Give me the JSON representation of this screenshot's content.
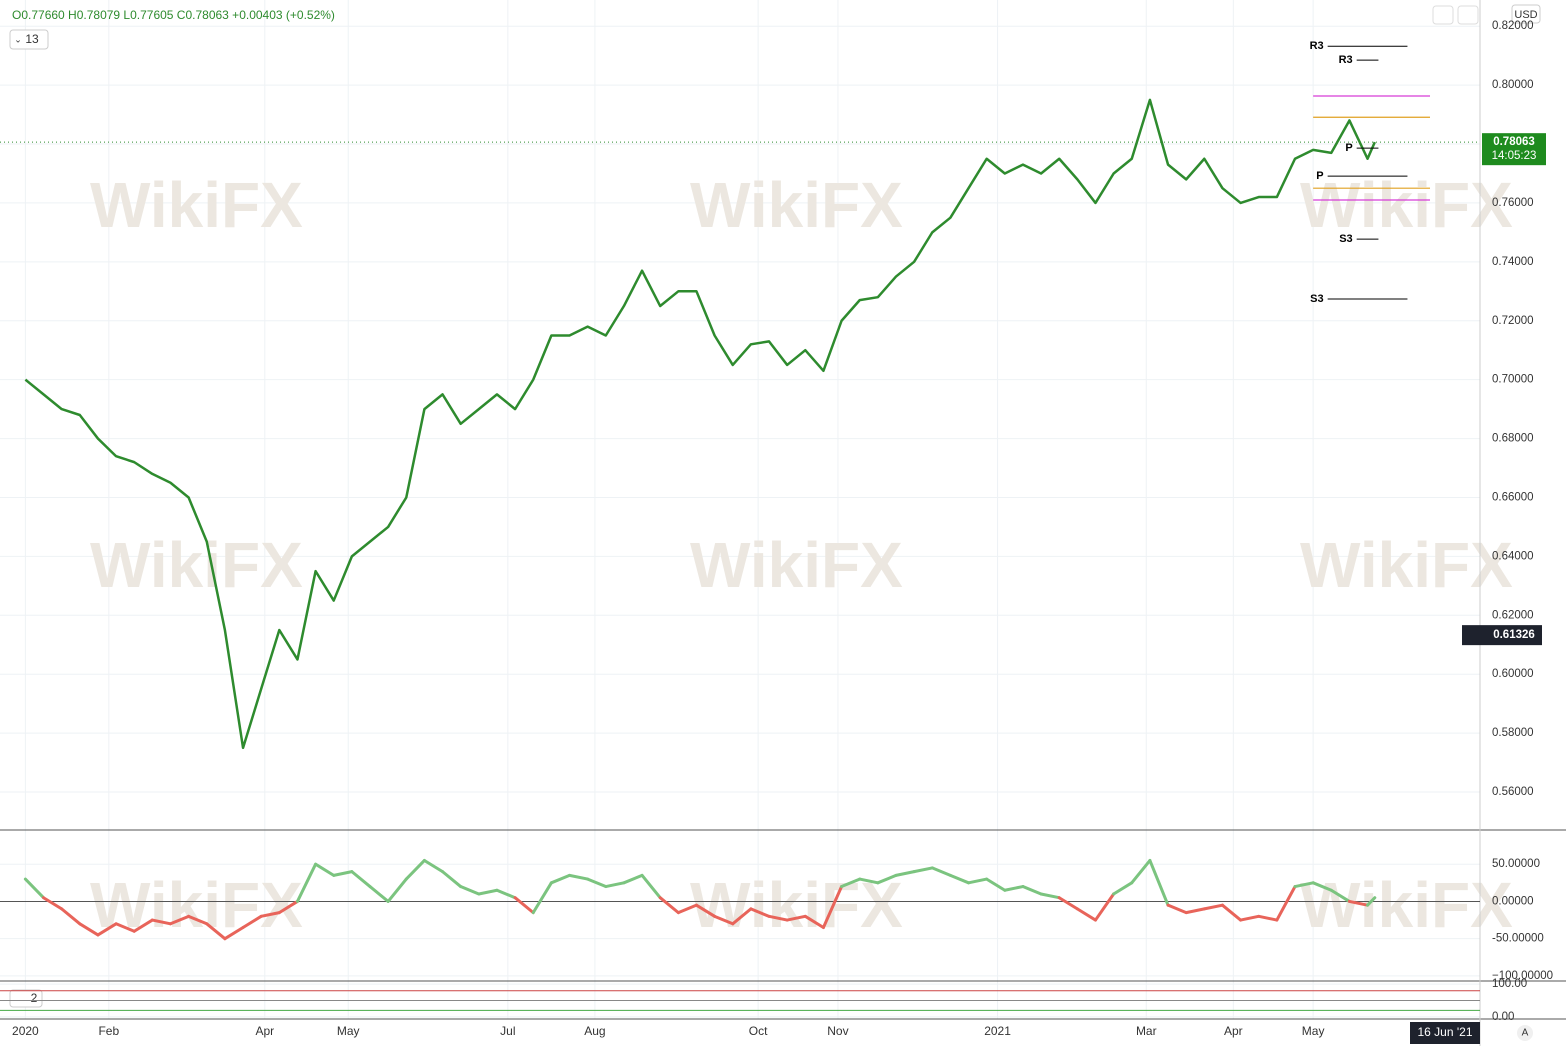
{
  "header": {
    "ohlc": "O0.77660 H0.78079 L0.77605 C0.78063 +0.00403 (+0.52%)",
    "interval": "13",
    "currency": "USD",
    "last_price": "0.78063",
    "countdown": "14:05:23",
    "cursor_price": "0.61326",
    "pane3_label": "2",
    "date_label": "16 Jun '21",
    "auto": "A",
    "watermark": "WikiFX"
  },
  "chart_data": [
    {
      "type": "line",
      "name": "price",
      "color": "#2e8b2e",
      "x": [
        0,
        5,
        10,
        15,
        20,
        25,
        30,
        35,
        40,
        45,
        50,
        55,
        60,
        65,
        70,
        75,
        80,
        85,
        90,
        95,
        100,
        105,
        110,
        115,
        120,
        125,
        130,
        135,
        140,
        145,
        150,
        155,
        160,
        165,
        170,
        175,
        180,
        185,
        190,
        195,
        200,
        205,
        210,
        215,
        220,
        225,
        230,
        235,
        240,
        245,
        250,
        255,
        260,
        265,
        270,
        275,
        280,
        285,
        290,
        295,
        300,
        305,
        310,
        315,
        320,
        325,
        330,
        335,
        340,
        345,
        350,
        355,
        360,
        365,
        370,
        372
      ],
      "values": [
        0.7,
        0.695,
        0.69,
        0.688,
        0.68,
        0.674,
        0.672,
        0.668,
        0.665,
        0.66,
        0.645,
        0.615,
        0.575,
        0.595,
        0.615,
        0.605,
        0.635,
        0.625,
        0.64,
        0.645,
        0.65,
        0.66,
        0.69,
        0.695,
        0.685,
        0.69,
        0.695,
        0.69,
        0.7,
        0.715,
        0.715,
        0.718,
        0.715,
        0.725,
        0.737,
        0.725,
        0.73,
        0.73,
        0.715,
        0.705,
        0.712,
        0.713,
        0.705,
        0.71,
        0.703,
        0.72,
        0.727,
        0.728,
        0.735,
        0.74,
        0.75,
        0.755,
        0.765,
        0.775,
        0.77,
        0.773,
        0.77,
        0.775,
        0.768,
        0.76,
        0.77,
        0.775,
        0.795,
        0.773,
        0.768,
        0.775,
        0.765,
        0.76,
        0.762,
        0.762,
        0.775,
        0.778,
        0.777,
        0.788,
        0.775,
        0.78063
      ],
      "xlim": [
        -7,
        401
      ],
      "ylim": [
        0.5471,
        0.8289
      ],
      "xticks": [
        {
          "value": 0,
          "label": "2020"
        },
        {
          "value": 23,
          "label": "Feb"
        },
        {
          "value": 66,
          "label": "Apr"
        },
        {
          "value": 89,
          "label": "May"
        },
        {
          "value": 133,
          "label": "Jul"
        },
        {
          "value": 157,
          "label": "Aug"
        },
        {
          "value": 202,
          "label": "Oct"
        },
        {
          "value": 224,
          "label": "Nov"
        },
        {
          "value": 268,
          "label": "2021"
        },
        {
          "value": 309,
          "label": "Mar"
        },
        {
          "value": 333,
          "label": "Apr"
        },
        {
          "value": 355,
          "label": "May"
        }
      ],
      "yticks": [
        {
          "value": 0.82,
          "label": "0.82000"
        },
        {
          "value": 0.8,
          "label": "0.80000"
        },
        {
          "value": 0.78,
          "label": "0.78000"
        },
        {
          "value": 0.76,
          "label": "0.76000"
        },
        {
          "value": 0.74,
          "label": "0.74000"
        },
        {
          "value": 0.72,
          "label": "0.72000"
        },
        {
          "value": 0.7,
          "label": "0.70000"
        },
        {
          "value": 0.68,
          "label": "0.68000"
        },
        {
          "value": 0.66,
          "label": "0.66000"
        },
        {
          "value": 0.64,
          "label": "0.64000"
        },
        {
          "value": 0.62,
          "label": "0.62000"
        },
        {
          "value": 0.6,
          "label": "0.60000"
        },
        {
          "value": 0.58,
          "label": "0.58000"
        },
        {
          "value": 0.56,
          "label": "0.56000"
        }
      ],
      "levels": [
        {
          "label": "R3",
          "value": 0.8132,
          "start": 359,
          "end": 381,
          "color": "#000"
        },
        {
          "label": "R3",
          "value": 0.8085,
          "start": 367,
          "end": 373,
          "color": "#000"
        },
        {
          "label": "P",
          "value": 0.7691,
          "start": 359,
          "end": 381,
          "color": "#000"
        },
        {
          "label": "P",
          "value": 0.7786,
          "start": 367,
          "end": 373,
          "color": "#000"
        },
        {
          "label": "S3",
          "value": 0.7477,
          "start": 367,
          "end": 373,
          "color": "#000"
        },
        {
          "label": "S3",
          "value": 0.7274,
          "start": 359,
          "end": 381,
          "color": "#000"
        }
      ],
      "bands": [
        {
          "value": 0.7963,
          "color": "#d63cd6"
        },
        {
          "value": 0.761,
          "color": "#d63cd6"
        },
        {
          "value": 0.7891,
          "color": "#e0a020"
        },
        {
          "value": 0.765,
          "color": "#e0a020"
        }
      ],
      "last": 0.78063,
      "cursor": 0.61326
    },
    {
      "type": "oscillator",
      "name": "momentum",
      "color_up": "#7bc47f",
      "color_down": "#e8645a",
      "x": [
        0,
        5,
        10,
        15,
        20,
        25,
        30,
        35,
        40,
        45,
        50,
        55,
        60,
        65,
        70,
        75,
        80,
        85,
        90,
        95,
        100,
        105,
        110,
        115,
        120,
        125,
        130,
        135,
        140,
        145,
        150,
        155,
        160,
        165,
        170,
        175,
        180,
        185,
        190,
        195,
        200,
        205,
        210,
        215,
        220,
        225,
        230,
        235,
        240,
        245,
        250,
        255,
        260,
        265,
        270,
        275,
        280,
        285,
        290,
        295,
        300,
        305,
        310,
        315,
        320,
        325,
        330,
        335,
        340,
        345,
        350,
        355,
        360,
        365,
        370,
        372
      ],
      "values": [
        30,
        5,
        -10,
        -30,
        -45,
        -30,
        -40,
        -25,
        -30,
        -20,
        -30,
        -50,
        -35,
        -20,
        -15,
        0,
        50,
        35,
        40,
        20,
        0,
        30,
        55,
        40,
        20,
        10,
        15,
        5,
        -15,
        25,
        35,
        30,
        20,
        25,
        35,
        5,
        -15,
        -5,
        -20,
        -30,
        -10,
        -20,
        -25,
        -20,
        -35,
        20,
        30,
        25,
        35,
        40,
        45,
        35,
        25,
        30,
        15,
        20,
        10,
        5,
        -10,
        -25,
        10,
        25,
        55,
        -5,
        -15,
        -10,
        -5,
        -25,
        -20,
        -25,
        20,
        25,
        15,
        0,
        -5,
        5
      ],
      "ylim": [
        -106.8,
        95.9
      ],
      "yticks": [
        {
          "value": 50,
          "label": "50.00000"
        },
        {
          "value": 0,
          "label": "0.00000"
        },
        {
          "value": -50,
          "label": "-50.00000"
        },
        {
          "value": -100,
          "label": "−100.00000"
        }
      ]
    },
    {
      "type": "levels",
      "name": "stochastic",
      "ylim": [
        -6.5,
        109.7
      ],
      "yticks": [
        {
          "value": 100,
          "label": "100.00"
        },
        {
          "value": 0,
          "label": "0.00"
        }
      ],
      "lines": [
        80,
        50,
        20
      ]
    }
  ]
}
